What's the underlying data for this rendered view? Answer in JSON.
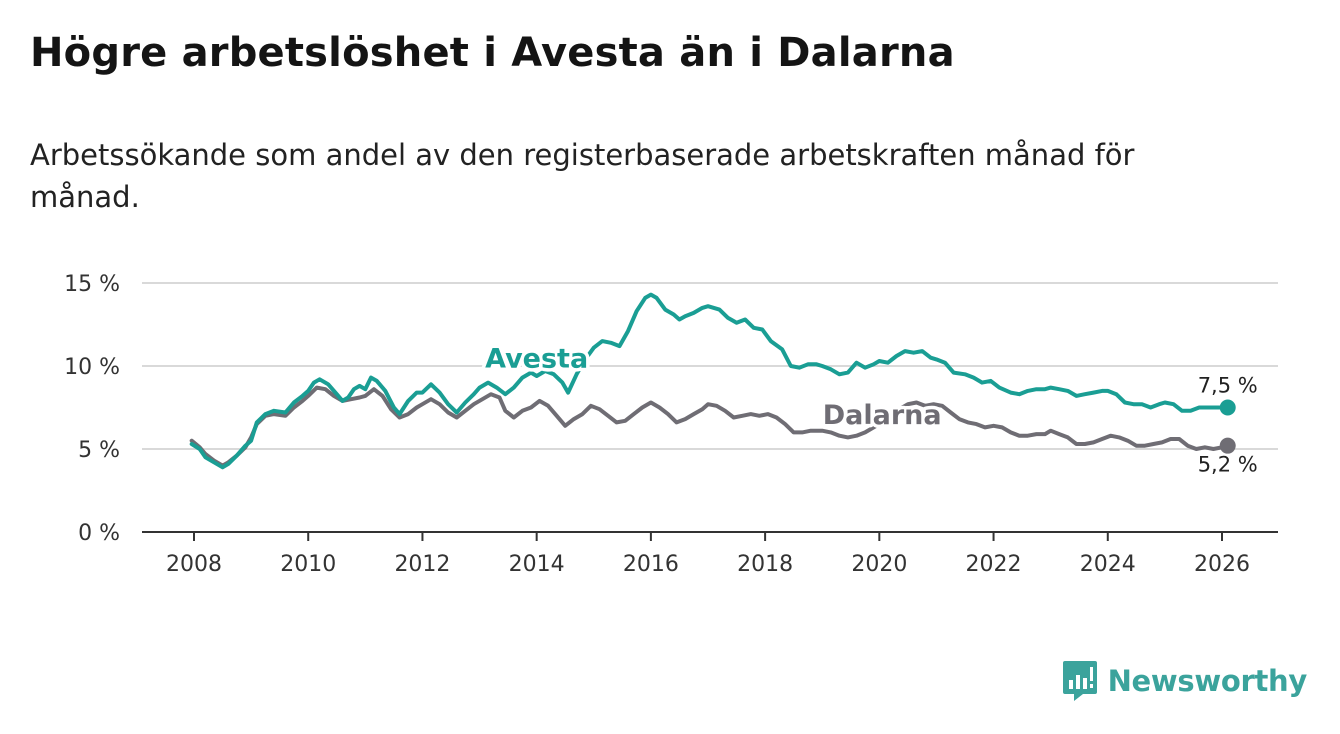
{
  "title": "Högre arbetslöshet i Avesta än i Dalarna",
  "subtitle": "Arbetssökande som andel av den registerbaserade arbetskraften månad för månad.",
  "brand": "Newsworthy",
  "colors": {
    "avesta": "#1a9e94",
    "dalarna": "#6f6d74",
    "grid": "#d9d9d9",
    "axis": "#333333",
    "brand": "#3ba39c"
  },
  "chart_data": {
    "type": "line",
    "title": "Högre arbetslöshet i Avesta än i Dalarna",
    "xlabel": "",
    "ylabel": "",
    "xlim": [
      2008,
      2026
    ],
    "ylim": [
      0,
      15
    ],
    "x_ticks": [
      {
        "value": 2008,
        "label": "2008"
      },
      {
        "value": 2010,
        "label": "2010"
      },
      {
        "value": 2012,
        "label": "2012"
      },
      {
        "value": 2014,
        "label": "2014"
      },
      {
        "value": 2016,
        "label": "2016"
      },
      {
        "value": 2018,
        "label": "2018"
      },
      {
        "value": 2020,
        "label": "2020"
      },
      {
        "value": 2022,
        "label": "2022"
      },
      {
        "value": 2024,
        "label": "2024"
      },
      {
        "value": 2026,
        "label": "2026"
      }
    ],
    "y_ticks": [
      {
        "value": 0,
        "label": "0 %"
      },
      {
        "value": 5,
        "label": "5 %"
      },
      {
        "value": 10,
        "label": "10 %"
      },
      {
        "value": 15,
        "label": "15 %"
      }
    ],
    "series": [
      {
        "name": "Avesta",
        "end_label": "7,5 %",
        "points": [
          [
            2007.96,
            5.3
          ],
          [
            2008.1,
            5.0
          ],
          [
            2008.2,
            4.5
          ],
          [
            2008.35,
            4.2
          ],
          [
            2008.5,
            3.9
          ],
          [
            2008.6,
            4.1
          ],
          [
            2008.75,
            4.6
          ],
          [
            2008.9,
            5.2
          ],
          [
            2009.0,
            5.5
          ],
          [
            2009.1,
            6.6
          ],
          [
            2009.25,
            7.1
          ],
          [
            2009.4,
            7.3
          ],
          [
            2009.6,
            7.2
          ],
          [
            2009.75,
            7.8
          ],
          [
            2009.9,
            8.2
          ],
          [
            2010.0,
            8.5
          ],
          [
            2010.1,
            9.0
          ],
          [
            2010.2,
            9.2
          ],
          [
            2010.35,
            8.9
          ],
          [
            2010.5,
            8.3
          ],
          [
            2010.6,
            7.9
          ],
          [
            2010.7,
            8.1
          ],
          [
            2010.8,
            8.6
          ],
          [
            2010.9,
            8.8
          ],
          [
            2011.0,
            8.6
          ],
          [
            2011.1,
            9.3
          ],
          [
            2011.2,
            9.1
          ],
          [
            2011.35,
            8.5
          ],
          [
            2011.5,
            7.5
          ],
          [
            2011.6,
            7.1
          ],
          [
            2011.75,
            7.9
          ],
          [
            2011.9,
            8.4
          ],
          [
            2012.0,
            8.4
          ],
          [
            2012.15,
            8.9
          ],
          [
            2012.3,
            8.4
          ],
          [
            2012.45,
            7.7
          ],
          [
            2012.6,
            7.2
          ],
          [
            2012.75,
            7.8
          ],
          [
            2012.9,
            8.3
          ],
          [
            2013.0,
            8.7
          ],
          [
            2013.15,
            9.0
          ],
          [
            2013.3,
            8.7
          ],
          [
            2013.45,
            8.3
          ],
          [
            2013.6,
            8.7
          ],
          [
            2013.75,
            9.3
          ],
          [
            2013.9,
            9.6
          ],
          [
            2014.0,
            9.4
          ],
          [
            2014.15,
            9.7
          ],
          [
            2014.3,
            9.5
          ],
          [
            2014.45,
            9.0
          ],
          [
            2014.55,
            8.4
          ],
          [
            2014.7,
            9.5
          ],
          [
            2014.85,
            10.4
          ],
          [
            2015.0,
            11.1
          ],
          [
            2015.15,
            11.5
          ],
          [
            2015.3,
            11.4
          ],
          [
            2015.45,
            11.2
          ],
          [
            2015.6,
            12.1
          ],
          [
            2015.75,
            13.3
          ],
          [
            2015.9,
            14.1
          ],
          [
            2016.0,
            14.3
          ],
          [
            2016.1,
            14.1
          ],
          [
            2016.25,
            13.4
          ],
          [
            2016.4,
            13.1
          ],
          [
            2016.5,
            12.8
          ],
          [
            2016.6,
            13.0
          ],
          [
            2016.75,
            13.2
          ],
          [
            2016.9,
            13.5
          ],
          [
            2017.0,
            13.6
          ],
          [
            2017.2,
            13.4
          ],
          [
            2017.35,
            12.9
          ],
          [
            2017.5,
            12.6
          ],
          [
            2017.65,
            12.8
          ],
          [
            2017.8,
            12.3
          ],
          [
            2017.95,
            12.2
          ],
          [
            2018.1,
            11.5
          ],
          [
            2018.3,
            11.0
          ],
          [
            2018.45,
            10.0
          ],
          [
            2018.6,
            9.9
          ],
          [
            2018.75,
            10.1
          ],
          [
            2018.9,
            10.1
          ],
          [
            2019.0,
            10.0
          ],
          [
            2019.15,
            9.8
          ],
          [
            2019.3,
            9.5
          ],
          [
            2019.45,
            9.6
          ],
          [
            2019.6,
            10.2
          ],
          [
            2019.75,
            9.9
          ],
          [
            2019.9,
            10.1
          ],
          [
            2020.0,
            10.3
          ],
          [
            2020.15,
            10.2
          ],
          [
            2020.3,
            10.6
          ],
          [
            2020.45,
            10.9
          ],
          [
            2020.6,
            10.8
          ],
          [
            2020.75,
            10.9
          ],
          [
            2020.9,
            10.5
          ],
          [
            2021.0,
            10.4
          ],
          [
            2021.15,
            10.2
          ],
          [
            2021.3,
            9.6
          ],
          [
            2021.5,
            9.5
          ],
          [
            2021.65,
            9.3
          ],
          [
            2021.8,
            9.0
          ],
          [
            2021.95,
            9.1
          ],
          [
            2022.1,
            8.7
          ],
          [
            2022.3,
            8.4
          ],
          [
            2022.45,
            8.3
          ],
          [
            2022.6,
            8.5
          ],
          [
            2022.75,
            8.6
          ],
          [
            2022.9,
            8.6
          ],
          [
            2023.0,
            8.7
          ],
          [
            2023.15,
            8.6
          ],
          [
            2023.3,
            8.5
          ],
          [
            2023.45,
            8.2
          ],
          [
            2023.6,
            8.3
          ],
          [
            2023.75,
            8.4
          ],
          [
            2023.9,
            8.5
          ],
          [
            2024.0,
            8.5
          ],
          [
            2024.15,
            8.3
          ],
          [
            2024.3,
            7.8
          ],
          [
            2024.45,
            7.7
          ],
          [
            2024.6,
            7.7
          ],
          [
            2024.75,
            7.5
          ],
          [
            2024.9,
            7.7
          ],
          [
            2025.0,
            7.8
          ],
          [
            2025.15,
            7.7
          ],
          [
            2025.3,
            7.3
          ],
          [
            2025.45,
            7.3
          ],
          [
            2025.6,
            7.5
          ],
          [
            2025.75,
            7.5
          ],
          [
            2025.9,
            7.5
          ],
          [
            2026.1,
            7.5
          ]
        ]
      },
      {
        "name": "Dalarna",
        "end_label": "5,2 %",
        "points": [
          [
            2007.96,
            5.5
          ],
          [
            2008.1,
            5.1
          ],
          [
            2008.2,
            4.7
          ],
          [
            2008.35,
            4.3
          ],
          [
            2008.5,
            4.0
          ],
          [
            2008.6,
            4.2
          ],
          [
            2008.75,
            4.6
          ],
          [
            2008.9,
            5.1
          ],
          [
            2009.0,
            5.7
          ],
          [
            2009.1,
            6.5
          ],
          [
            2009.25,
            7.0
          ],
          [
            2009.4,
            7.1
          ],
          [
            2009.6,
            7.0
          ],
          [
            2009.75,
            7.5
          ],
          [
            2009.9,
            7.9
          ],
          [
            2010.0,
            8.2
          ],
          [
            2010.15,
            8.7
          ],
          [
            2010.3,
            8.6
          ],
          [
            2010.45,
            8.2
          ],
          [
            2010.6,
            7.9
          ],
          [
            2010.75,
            8.0
          ],
          [
            2010.9,
            8.1
          ],
          [
            2011.0,
            8.2
          ],
          [
            2011.15,
            8.6
          ],
          [
            2011.3,
            8.2
          ],
          [
            2011.45,
            7.4
          ],
          [
            2011.6,
            6.9
          ],
          [
            2011.75,
            7.1
          ],
          [
            2011.9,
            7.5
          ],
          [
            2012.0,
            7.7
          ],
          [
            2012.15,
            8.0
          ],
          [
            2012.3,
            7.7
          ],
          [
            2012.45,
            7.2
          ],
          [
            2012.6,
            6.9
          ],
          [
            2012.75,
            7.3
          ],
          [
            2012.9,
            7.7
          ],
          [
            2013.05,
            8.0
          ],
          [
            2013.2,
            8.3
          ],
          [
            2013.35,
            8.1
          ],
          [
            2013.45,
            7.3
          ],
          [
            2013.6,
            6.9
          ],
          [
            2013.75,
            7.3
          ],
          [
            2013.9,
            7.5
          ],
          [
            2014.05,
            7.9
          ],
          [
            2014.2,
            7.6
          ],
          [
            2014.35,
            7.0
          ],
          [
            2014.5,
            6.4
          ],
          [
            2014.65,
            6.8
          ],
          [
            2014.8,
            7.1
          ],
          [
            2014.95,
            7.6
          ],
          [
            2015.1,
            7.4
          ],
          [
            2015.25,
            7.0
          ],
          [
            2015.4,
            6.6
          ],
          [
            2015.55,
            6.7
          ],
          [
            2015.7,
            7.1
          ],
          [
            2015.85,
            7.5
          ],
          [
            2016.0,
            7.8
          ],
          [
            2016.15,
            7.5
          ],
          [
            2016.3,
            7.1
          ],
          [
            2016.45,
            6.6
          ],
          [
            2016.6,
            6.8
          ],
          [
            2016.75,
            7.1
          ],
          [
            2016.9,
            7.4
          ],
          [
            2017.0,
            7.7
          ],
          [
            2017.15,
            7.6
          ],
          [
            2017.3,
            7.3
          ],
          [
            2017.45,
            6.9
          ],
          [
            2017.6,
            7.0
          ],
          [
            2017.75,
            7.1
          ],
          [
            2017.9,
            7.0
          ],
          [
            2018.05,
            7.1
          ],
          [
            2018.2,
            6.9
          ],
          [
            2018.35,
            6.5
          ],
          [
            2018.5,
            6.0
          ],
          [
            2018.65,
            6.0
          ],
          [
            2018.8,
            6.1
          ],
          [
            2018.9,
            6.1
          ],
          [
            2019.0,
            6.1
          ],
          [
            2019.15,
            6.0
          ],
          [
            2019.3,
            5.8
          ],
          [
            2019.45,
            5.7
          ],
          [
            2019.6,
            5.8
          ],
          [
            2019.75,
            6.0
          ],
          [
            2019.9,
            6.3
          ],
          [
            2020.05,
            6.6
          ],
          [
            2020.2,
            6.9
          ],
          [
            2020.35,
            7.4
          ],
          [
            2020.5,
            7.7
          ],
          [
            2020.65,
            7.8
          ],
          [
            2020.8,
            7.6
          ],
          [
            2020.95,
            7.7
          ],
          [
            2021.1,
            7.6
          ],
          [
            2021.25,
            7.2
          ],
          [
            2021.4,
            6.8
          ],
          [
            2021.55,
            6.6
          ],
          [
            2021.7,
            6.5
          ],
          [
            2021.85,
            6.3
          ],
          [
            2022.0,
            6.4
          ],
          [
            2022.15,
            6.3
          ],
          [
            2022.3,
            6.0
          ],
          [
            2022.45,
            5.8
          ],
          [
            2022.6,
            5.8
          ],
          [
            2022.75,
            5.9
          ],
          [
            2022.9,
            5.9
          ],
          [
            2023.0,
            6.1
          ],
          [
            2023.15,
            5.9
          ],
          [
            2023.3,
            5.7
          ],
          [
            2023.45,
            5.3
          ],
          [
            2023.6,
            5.3
          ],
          [
            2023.75,
            5.4
          ],
          [
            2023.9,
            5.6
          ],
          [
            2024.05,
            5.8
          ],
          [
            2024.2,
            5.7
          ],
          [
            2024.35,
            5.5
          ],
          [
            2024.5,
            5.2
          ],
          [
            2024.65,
            5.2
          ],
          [
            2024.8,
            5.3
          ],
          [
            2024.95,
            5.4
          ],
          [
            2025.1,
            5.6
          ],
          [
            2025.25,
            5.6
          ],
          [
            2025.4,
            5.2
          ],
          [
            2025.55,
            5.0
          ],
          [
            2025.7,
            5.1
          ],
          [
            2025.85,
            5.0
          ],
          [
            2026.0,
            5.1
          ],
          [
            2026.1,
            5.2
          ]
        ]
      }
    ],
    "annotations": [
      {
        "text": "Avesta",
        "series": "Avesta",
        "x": 2014.0,
        "y": 9.9
      },
      {
        "text": "Dalarna",
        "series": "Dalarna",
        "x": 2020.05,
        "y": 6.5
      }
    ]
  }
}
